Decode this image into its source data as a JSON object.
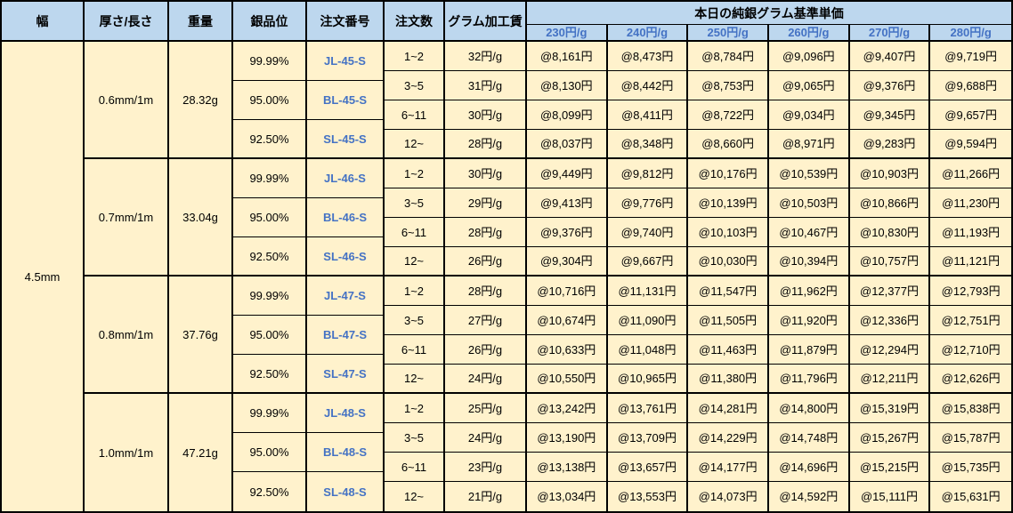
{
  "table": {
    "headers": {
      "width": "幅",
      "thickness": "厚さ/長さ",
      "weight": "重量",
      "purity": "銀品位",
      "order_no": "注文番号",
      "qty": "注文数",
      "fee": "グラム加工賃",
      "price_group": "本日の純銀グラム基準単価",
      "price_cols": [
        "230円/g",
        "240円/g",
        "250円/g",
        "260円/g",
        "270円/g",
        "280円/g"
      ]
    },
    "width_value": "4.5mm",
    "groups": [
      {
        "thickness": "0.6mm/1m",
        "weight": "28.32g",
        "purities": [
          {
            "purity": "99.99%",
            "order_no": "JL-45-S"
          },
          {
            "purity": "95.00%",
            "order_no": "BL-45-S"
          },
          {
            "purity": "92.50%",
            "order_no": "SL-45-S"
          }
        ],
        "rows": [
          {
            "qty": "1~2",
            "fee": "32円/g",
            "prices": [
              "@8,161円",
              "@8,473円",
              "@8,784円",
              "@9,096円",
              "@9,407円",
              "@9,719円"
            ]
          },
          {
            "qty": "3~5",
            "fee": "31円/g",
            "prices": [
              "@8,130円",
              "@8,442円",
              "@8,753円",
              "@9,065円",
              "@9,376円",
              "@9,688円"
            ]
          },
          {
            "qty": "6~11",
            "fee": "30円/g",
            "prices": [
              "@8,099円",
              "@8,411円",
              "@8,722円",
              "@9,034円",
              "@9,345円",
              "@9,657円"
            ]
          },
          {
            "qty": "12~",
            "fee": "28円/g",
            "prices": [
              "@8,037円",
              "@8,348円",
              "@8,660円",
              "@8,971円",
              "@9,283円",
              "@9,594円"
            ]
          }
        ]
      },
      {
        "thickness": "0.7mm/1m",
        "weight": "33.04g",
        "purities": [
          {
            "purity": "99.99%",
            "order_no": "JL-46-S"
          },
          {
            "purity": "95.00%",
            "order_no": "BL-46-S"
          },
          {
            "purity": "92.50%",
            "order_no": "SL-46-S"
          }
        ],
        "rows": [
          {
            "qty": "1~2",
            "fee": "30円/g",
            "prices": [
              "@9,449円",
              "@9,812円",
              "@10,176円",
              "@10,539円",
              "@10,903円",
              "@11,266円"
            ]
          },
          {
            "qty": "3~5",
            "fee": "29円/g",
            "prices": [
              "@9,413円",
              "@9,776円",
              "@10,139円",
              "@10,503円",
              "@10,866円",
              "@11,230円"
            ]
          },
          {
            "qty": "6~11",
            "fee": "28円/g",
            "prices": [
              "@9,376円",
              "@9,740円",
              "@10,103円",
              "@10,467円",
              "@10,830円",
              "@11,193円"
            ]
          },
          {
            "qty": "12~",
            "fee": "26円/g",
            "prices": [
              "@9,304円",
              "@9,667円",
              "@10,030円",
              "@10,394円",
              "@10,757円",
              "@11,121円"
            ]
          }
        ]
      },
      {
        "thickness": "0.8mm/1m",
        "weight": "37.76g",
        "purities": [
          {
            "purity": "99.99%",
            "order_no": "JL-47-S"
          },
          {
            "purity": "95.00%",
            "order_no": "BL-47-S"
          },
          {
            "purity": "92.50%",
            "order_no": "SL-47-S"
          }
        ],
        "rows": [
          {
            "qty": "1~2",
            "fee": "28円/g",
            "prices": [
              "@10,716円",
              "@11,131円",
              "@11,547円",
              "@11,962円",
              "@12,377円",
              "@12,793円"
            ]
          },
          {
            "qty": "3~5",
            "fee": "27円/g",
            "prices": [
              "@10,674円",
              "@11,090円",
              "@11,505円",
              "@11,920円",
              "@12,336円",
              "@12,751円"
            ]
          },
          {
            "qty": "6~11",
            "fee": "26円/g",
            "prices": [
              "@10,633円",
              "@11,048円",
              "@11,463円",
              "@11,879円",
              "@12,294円",
              "@12,710円"
            ]
          },
          {
            "qty": "12~",
            "fee": "24円/g",
            "prices": [
              "@10,550円",
              "@10,965円",
              "@11,380円",
              "@11,796円",
              "@12,211円",
              "@12,626円"
            ]
          }
        ]
      },
      {
        "thickness": "1.0mm/1m",
        "weight": "47.21g",
        "purities": [
          {
            "purity": "99.99%",
            "order_no": "JL-48-S"
          },
          {
            "purity": "95.00%",
            "order_no": "BL-48-S"
          },
          {
            "purity": "92.50%",
            "order_no": "SL-48-S"
          }
        ],
        "rows": [
          {
            "qty": "1~2",
            "fee": "25円/g",
            "prices": [
              "@13,242円",
              "@13,761円",
              "@14,281円",
              "@14,800円",
              "@15,319円",
              "@15,838円"
            ]
          },
          {
            "qty": "3~5",
            "fee": "24円/g",
            "prices": [
              "@13,190円",
              "@13,709円",
              "@14,229円",
              "@14,748円",
              "@15,267円",
              "@15,787円"
            ]
          },
          {
            "qty": "6~11",
            "fee": "23円/g",
            "prices": [
              "@13,138円",
              "@13,657円",
              "@14,177円",
              "@14,696円",
              "@15,215円",
              "@15,735円"
            ]
          },
          {
            "qty": "12~",
            "fee": "21円/g",
            "prices": [
              "@13,034円",
              "@13,553円",
              "@14,073円",
              "@14,592円",
              "@15,111円",
              "@15,631円"
            ]
          }
        ]
      }
    ],
    "colors": {
      "header_bg": "#BDD7EE",
      "cell_bg": "#FFF2CC",
      "accent_blue": "#4472C4",
      "border": "#000000"
    }
  }
}
